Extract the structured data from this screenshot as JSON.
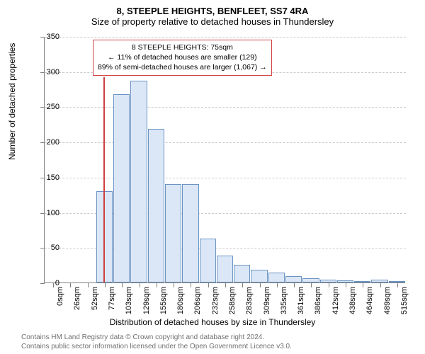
{
  "header": {
    "address": "8, STEEPLE HEIGHTS, BENFLEET, SS7 4RA",
    "subtitle": "Size of property relative to detached houses in Thundersley"
  },
  "chart": {
    "type": "histogram",
    "ylabel": "Number of detached properties",
    "xlabel": "Distribution of detached houses by size in Thundersley",
    "ylim": [
      0,
      350
    ],
    "ytick_step": 50,
    "yticks": [
      0,
      50,
      100,
      150,
      200,
      250,
      300,
      350
    ],
    "categories": [
      "0sqm",
      "26sqm",
      "52sqm",
      "77sqm",
      "103sqm",
      "129sqm",
      "155sqm",
      "180sqm",
      "206sqm",
      "232sqm",
      "258sqm",
      "283sqm",
      "309sqm",
      "335sqm",
      "361sqm",
      "386sqm",
      "412sqm",
      "438sqm",
      "464sqm",
      "489sqm",
      "515sqm"
    ],
    "values": [
      0,
      0,
      0,
      130,
      268,
      287,
      218,
      140,
      140,
      62,
      38,
      25,
      18,
      14,
      9,
      6,
      4,
      3,
      2,
      4,
      2
    ],
    "bar_fill": "#dbe7f6",
    "bar_stroke": "#6b94c4",
    "grid_color": "#cccccc",
    "axis_color": "#808080",
    "background": "#ffffff",
    "marker": {
      "position_index": 2.9,
      "color": "#d04040",
      "height_value": 292
    },
    "annotation": {
      "line1": "8 STEEPLE HEIGHTS: 75sqm",
      "line2": "← 11% of detached houses are smaller (129)",
      "line3": "89% of semi-detached houses are larger (1,067) →",
      "border_color": "#d04040"
    },
    "label_fontsize": 11,
    "axis_label_fontsize": 12,
    "title_fontsize": 13
  },
  "footer": {
    "line1": "Contains HM Land Registry data © Crown copyright and database right 2024.",
    "line2": "Contains public sector information licensed under the Open Government Licence v3.0."
  }
}
